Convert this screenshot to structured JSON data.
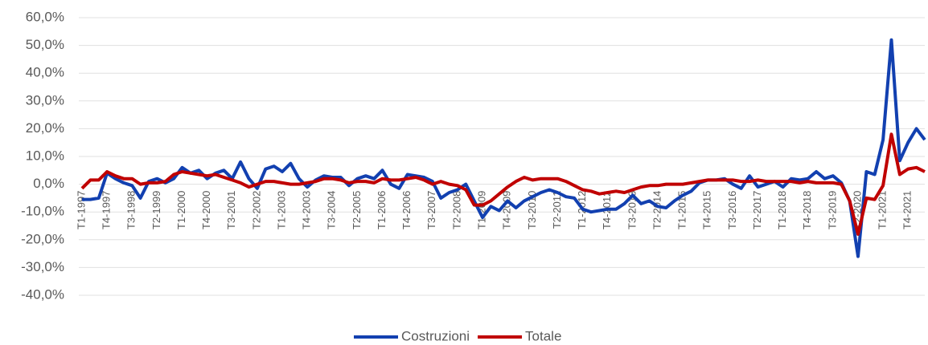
{
  "chart_data": {
    "type": "line",
    "categories": [
      "T1-1997",
      null,
      null,
      "T4-1997",
      null,
      null,
      "T3-1998",
      null,
      null,
      "T2-1999",
      null,
      null,
      "T1-2000",
      null,
      null,
      "T4-2000",
      null,
      null,
      "T3-2001",
      null,
      null,
      "T2-2002",
      null,
      null,
      "T1-2003",
      null,
      null,
      "T4-2003",
      null,
      null,
      "T3-2004",
      null,
      null,
      "T2-2005",
      null,
      null,
      "T1-2006",
      null,
      null,
      "T4-2006",
      null,
      null,
      "T3-2007",
      null,
      null,
      "T2-2008",
      null,
      null,
      "T1-2009",
      null,
      null,
      "T4-2009",
      null,
      null,
      "T3-2010",
      null,
      null,
      "T2-2011",
      null,
      null,
      "T1-2012",
      null,
      null,
      "T4-2012",
      null,
      null,
      "T3-2013",
      null,
      null,
      "T2-2014",
      null,
      null,
      "T1-2015",
      null,
      null,
      "T4-2015",
      null,
      null,
      "T3-2016",
      null,
      null,
      "T2-2017",
      null,
      null,
      "T1-2018",
      null,
      null,
      "T4-2018",
      null,
      null,
      "T3-2019",
      null,
      null,
      "T2-2020",
      null,
      null,
      "T1-2021",
      null,
      null,
      "T4-2021",
      null,
      null
    ],
    "series": [
      {
        "name": "Costruzioni",
        "color": "#1240b0",
        "values": [
          -5.5,
          -5.5,
          -5,
          4,
          2,
          0.5,
          -0.5,
          -5,
          1,
          2,
          0.5,
          2,
          6,
          4,
          5,
          2,
          4,
          5,
          2,
          8,
          2,
          -1.5,
          5.5,
          6.5,
          4.5,
          7.5,
          2,
          -1,
          1.5,
          3,
          2.5,
          2.5,
          -0.5,
          2,
          3,
          2,
          5,
          0,
          -1.5,
          3.5,
          3,
          2.5,
          1,
          -5,
          -3,
          -2,
          0,
          -6,
          -12,
          -8,
          -9.5,
          -6,
          -8.5,
          -6,
          -4.5,
          -3,
          -2,
          -3,
          -4.5,
          -5,
          -9,
          -10,
          -9.5,
          -9,
          -9,
          -7,
          -4,
          -7,
          -6,
          -8,
          -8.5,
          -6,
          -4,
          -2.5,
          0.5,
          1.5,
          1.5,
          2,
          0,
          -1.5,
          3,
          -1,
          0,
          1,
          -1,
          2,
          1.5,
          2,
          4.5,
          2,
          3,
          0.5,
          -6,
          -26,
          4.5,
          3.5,
          16,
          52,
          8.5,
          15,
          20,
          16
        ]
      },
      {
        "name": "Totale",
        "color": "#c00000",
        "values": [
          -1.5,
          1.5,
          1.5,
          4.5,
          3,
          2,
          2,
          0,
          0.5,
          0.5,
          1,
          3.5,
          4.5,
          4,
          3.5,
          3,
          3.5,
          2.5,
          1.5,
          0.5,
          -1,
          0,
          1,
          1,
          0.5,
          0,
          0,
          0.5,
          1,
          2,
          2,
          1.5,
          0.5,
          1,
          1,
          0.5,
          2,
          1.5,
          1.5,
          2,
          2.5,
          1.5,
          0,
          1,
          0,
          -0.5,
          -2,
          -7.5,
          -7.5,
          -6,
          -3.5,
          -1,
          1,
          2.5,
          1.5,
          2,
          2,
          2,
          1,
          -0.5,
          -2,
          -2.5,
          -3.5,
          -3,
          -2.5,
          -3,
          -2,
          -1,
          -0.5,
          -0.5,
          0,
          0,
          0,
          0.5,
          1,
          1.5,
          1.5,
          1.5,
          1.5,
          1,
          1,
          1.5,
          1,
          1,
          1,
          1,
          0.5,
          1,
          0.5,
          0.5,
          0.5,
          0,
          -6,
          -18,
          -5,
          -5.5,
          -0.5,
          18,
          3.5,
          5.5,
          6,
          4.5
        ]
      }
    ],
    "ylim": [
      -40,
      60
    ],
    "yticks": [
      {
        "value": -40,
        "label": "-40,0%"
      },
      {
        "value": -30,
        "label": "-30,0%"
      },
      {
        "value": -20,
        "label": "-20,0%"
      },
      {
        "value": -10,
        "label": "-10,0%"
      },
      {
        "value": 0,
        "label": "0,0%"
      },
      {
        "value": 10,
        "label": "10,0%"
      },
      {
        "value": 20,
        "label": "20,0%"
      },
      {
        "value": 30,
        "label": "30,0%"
      },
      {
        "value": 40,
        "label": "40,0%"
      },
      {
        "value": 50,
        "label": "50,0%"
      },
      {
        "value": 60,
        "label": "60,0%"
      }
    ],
    "grid": true,
    "legend": "bottom"
  }
}
